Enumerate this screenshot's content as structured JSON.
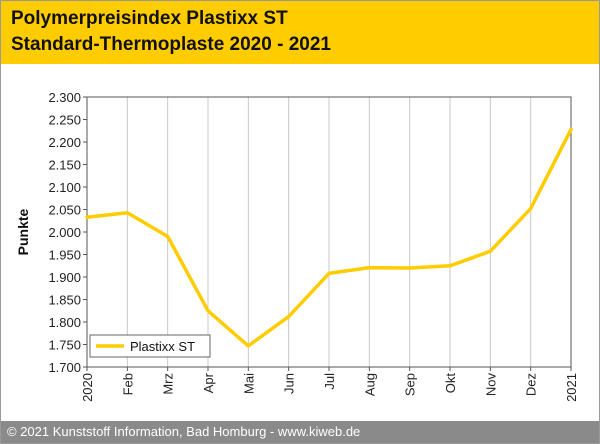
{
  "header": {
    "title_line1": "Polymerpreisindex Plastixx ST",
    "title_line2": "Standard-Thermoplaste 2020 - 2021"
  },
  "footer": {
    "text": "© 2021 Kunststoff Information, Bad Homburg - www.kiweb.de"
  },
  "colors": {
    "header_bg": "#ffcc00",
    "line": "#ffcc00",
    "footer_bg": "#8a8a8a",
    "grid": "#c8c8c8"
  },
  "chart_data": {
    "type": "line",
    "title": "Polymerpreisindex Plastixx ST Standard-Thermoplaste 2020 - 2021",
    "xlabel": "",
    "ylabel": "Punkte",
    "x_ticks": [
      "2020",
      "Feb",
      "Mrz",
      "Apr",
      "Mai",
      "Jun",
      "Jul",
      "Aug",
      "Sep",
      "Okt",
      "Nov",
      "Dez",
      "2021"
    ],
    "y_ticks": [
      "2.300",
      "2.250",
      "2.200",
      "2.150",
      "2.100",
      "2.050",
      "2.000",
      "1.950",
      "1.900",
      "1.850",
      "1.800",
      "1.750",
      "1.700"
    ],
    "ylim": [
      1700,
      2300
    ],
    "grid": "vertical",
    "legend_position": "bottom-left",
    "series": [
      {
        "name": "Plastixx ST",
        "color": "#ffcc00",
        "values": [
          2033,
          2043,
          1990,
          1825,
          1747,
          1812,
          1908,
          1921,
          1920,
          1925,
          1957,
          2052,
          2228
        ]
      }
    ]
  }
}
